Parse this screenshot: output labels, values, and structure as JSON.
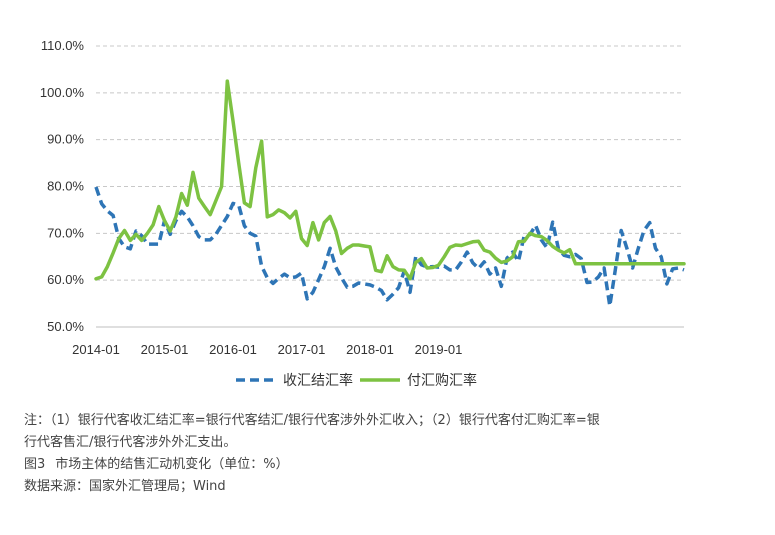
{
  "chart_data": {
    "type": "line",
    "x_ticks": [
      "2014-01",
      "2015-01",
      "2016-01",
      "2017-01",
      "2018-01",
      "2019-01"
    ],
    "y_ticks": [
      "50.0%",
      "60.0%",
      "70.0%",
      "80.0%",
      "90.0%",
      "100.0%",
      "110.0%"
    ],
    "ylim": [
      50,
      110
    ],
    "x_start": "2014-01",
    "x_end": "2019-12",
    "grid": "horizontal dashed",
    "legend_position": "bottom",
    "series": [
      {
        "name": "收汇结汇率",
        "style": "dashed",
        "color": "#2E75B6",
        "values": [
          79.9,
          76.3,
          74.8,
          73.8,
          68.9,
          67.1,
          66.7,
          70.5,
          69.5,
          67.7,
          67.7,
          67.7,
          72.7,
          69.8,
          72.7,
          74.7,
          73.5,
          71.6,
          69.3,
          68.6,
          68.6,
          69.8,
          71.7,
          73.6,
          76.4,
          76.0,
          71.6,
          70.0,
          69.4,
          63.0,
          60.5,
          59.3,
          60.4,
          61.3,
          60.5,
          60.7,
          61.5,
          56.0,
          57.4,
          60.1,
          62.9,
          66.8,
          62.8,
          60.5,
          58.5,
          58.7,
          59.4,
          59.2,
          59.0,
          58.5,
          57.8,
          55.8,
          57.0,
          58.4,
          62.0,
          57.4,
          65.0,
          63.3,
          62.8,
          62.9,
          62.8,
          63.0,
          62.2,
          62.2,
          63.9,
          66.0,
          63.7,
          62.5,
          63.9,
          61.3,
          62.6,
          58.7,
          64.7,
          66.0,
          64.0,
          69.5,
          69.7,
          71.7,
          68.6,
          66.9,
          72.4,
          66.7,
          65.3,
          65.0,
          65.5,
          64.6,
          59.5,
          59.6,
          60.7,
          62.6,
          54.5,
          62.5,
          70.6,
          66.8,
          62.6,
          66.8,
          70.6,
          72.3,
          66.8,
          65.0,
          59.2,
          62.4,
          62.6,
          62.2
        ]
      },
      {
        "name": "付汇购汇率",
        "style": "solid",
        "color": "#7DC242",
        "values": [
          60.3,
          60.7,
          62.9,
          65.8,
          68.9,
          70.6,
          68.5,
          69.8,
          68.5,
          70.0,
          71.8,
          75.7,
          72.7,
          70.5,
          73.5,
          78.5,
          76.0,
          83.0,
          77.5,
          75.7,
          74.0,
          77.0,
          80.0,
          102.5,
          94.0,
          85.0,
          76.5,
          75.7,
          84.0,
          89.7,
          73.5,
          74.0,
          75.0,
          74.4,
          73.3,
          74.7,
          68.9,
          67.4,
          72.3,
          68.6,
          72.3,
          73.6,
          70.5,
          65.7,
          66.8,
          67.5,
          67.5,
          67.3,
          67.1,
          62.1,
          61.8,
          65.2,
          62.9,
          62.2,
          62.1,
          60.3,
          63.8,
          64.6,
          62.6,
          62.7,
          63.2,
          65.0,
          67.0,
          67.5,
          67.4,
          67.8,
          68.2,
          68.3,
          66.4,
          66.0,
          64.7,
          63.8,
          64.1,
          65.0,
          68.2,
          68.3,
          70.0,
          69.5,
          69.3,
          68.5,
          67.2,
          66.4,
          65.8,
          66.5,
          63.5,
          63.5,
          63.5,
          63.5,
          63.5,
          63.5,
          63.5,
          63.5,
          63.5,
          63.5,
          63.5,
          63.5,
          63.5,
          63.5,
          63.5,
          63.5,
          63.5,
          63.5,
          63.5,
          63.5
        ]
      }
    ]
  },
  "notes": {
    "note_line1": "注：（1）银行代客收汇结汇率=银行代客结汇/银行代客涉外外汇收入；（2）银行代客付汇购汇率=银",
    "note_line2": "行代客售汇/银行代客涉外外汇支出。",
    "figure_number": "图3",
    "figure_title": "市场主体的结售汇动机变化（单位：%）",
    "source": "数据来源：国家外汇管理局；Wind"
  }
}
